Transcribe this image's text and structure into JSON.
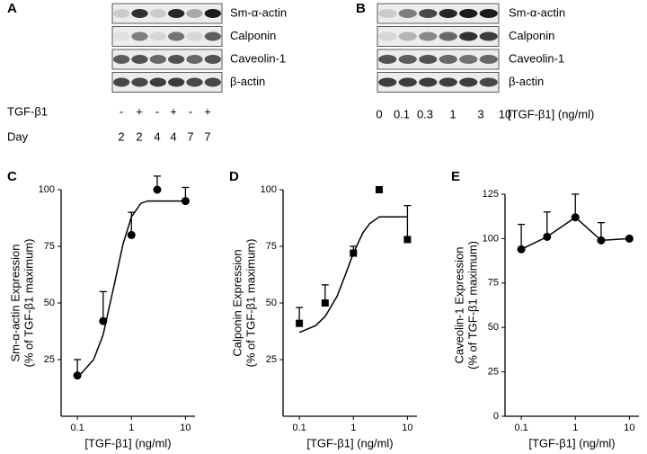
{
  "panel_a": {
    "letter": "A",
    "bands": [
      "Sm-α-actin",
      "Calponin",
      "Caveolin-1",
      "β-actin"
    ],
    "row_labels": [
      "TGF-β1",
      "Day"
    ],
    "treatment": [
      "-",
      "+",
      "-",
      "+",
      "-",
      "+"
    ],
    "day": [
      "2",
      "2",
      "4",
      "4",
      "7",
      "7"
    ]
  },
  "panel_b": {
    "letter": "B",
    "bands": [
      "Sm-α-actin",
      "Calponin",
      "Caveolin-1",
      "β-actin"
    ],
    "doses": [
      "0",
      "0.1",
      "0.3",
      "1",
      "3",
      "10"
    ],
    "dose_label": "[TGF-β1] (ng/ml)"
  },
  "chart_data": [
    {
      "type": "line",
      "title": "C",
      "ylabel": [
        "Sm-α-actin Expression",
        "(% of TGF-β1 maximum)"
      ],
      "xlabel": "[TGF-β1] (ng/ml)",
      "log_x": true,
      "marker": "circle",
      "color": "#000000",
      "x": [
        0.1,
        0.3,
        1,
        3,
        10
      ],
      "values": [
        18,
        42,
        80,
        100,
        95
      ],
      "errors": [
        7,
        13,
        10,
        6,
        6
      ],
      "fit": {
        "x": [
          0.1,
          0.2,
          0.3,
          0.5,
          0.7,
          1,
          1.5,
          2,
          3,
          5,
          10
        ],
        "values": [
          17,
          25,
          36,
          60,
          76,
          88,
          94,
          95,
          95,
          95,
          95
        ]
      },
      "xlim": [
        0.05,
        15
      ],
      "xticks": [
        0.1,
        1,
        10
      ],
      "ylim": [
        0,
        100
      ],
      "yticks": [
        25,
        50,
        75,
        100
      ]
    },
    {
      "type": "line",
      "title": "D",
      "ylabel": [
        "Calponin Expression",
        "(% of TGF-β1 maximum)"
      ],
      "xlabel": "[TGF-β1] (ng/ml)",
      "log_x": true,
      "marker": "square",
      "color": "#000000",
      "x": [
        0.1,
        0.3,
        1,
        3,
        10
      ],
      "values": [
        41,
        50,
        72,
        100,
        78
      ],
      "errors": [
        7,
        8,
        3,
        null,
        15
      ],
      "fit": {
        "x": [
          0.1,
          0.2,
          0.3,
          0.5,
          0.7,
          1,
          1.5,
          2,
          3,
          5,
          10
        ],
        "values": [
          37,
          40,
          44,
          53,
          62,
          72,
          81,
          85,
          88,
          88,
          88
        ]
      },
      "xlim": [
        0.05,
        15
      ],
      "xticks": [
        0.1,
        1,
        10
      ],
      "ylim": [
        0,
        100
      ],
      "yticks": [
        25,
        50,
        75,
        100
      ]
    },
    {
      "type": "line",
      "title": "E",
      "ylabel": [
        "Caveolin-1 Expression",
        "(% of TGF-β1 maximum)"
      ],
      "xlabel": "[TGF-β1] (ng/ml)",
      "log_x": true,
      "marker": "circle",
      "color": "#000000",
      "connect": true,
      "x": [
        0.1,
        0.3,
        1,
        3,
        10
      ],
      "values": [
        94,
        101,
        112,
        99,
        100
      ],
      "errors": [
        14,
        14,
        13,
        10,
        null
      ],
      "xlim": [
        0.05,
        15
      ],
      "xticks": [
        0.1,
        1,
        10
      ],
      "ylim": [
        0,
        125
      ],
      "yticks": [
        0,
        25,
        50,
        75,
        100,
        125
      ]
    }
  ]
}
